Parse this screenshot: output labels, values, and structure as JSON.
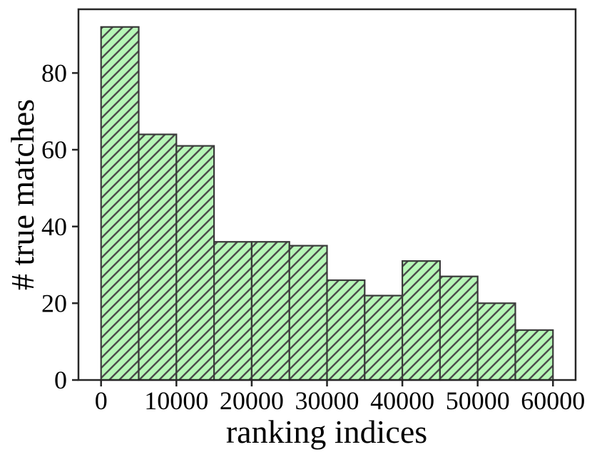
{
  "figure": {
    "title": ""
  },
  "chart_data": {
    "type": "bar",
    "subtype": "histogram",
    "title": "",
    "xlabel": "ranking indices",
    "ylabel": "# true matches",
    "bin_edges": [
      0,
      5000,
      10000,
      15000,
      20000,
      25000,
      30000,
      35000,
      40000,
      45000,
      50000,
      55000,
      60000
    ],
    "values": [
      92,
      64,
      61,
      36,
      36,
      35,
      26,
      22,
      31,
      27,
      20,
      13
    ],
    "x_ticks": [
      0,
      10000,
      20000,
      30000,
      40000,
      50000,
      60000
    ],
    "y_ticks": [
      0,
      20,
      40,
      60,
      80
    ],
    "xlim": [
      -3000,
      63000
    ],
    "ylim": [
      0,
      96.6
    ],
    "grid": false,
    "legend_position": "none",
    "hatch": "/",
    "colors": {
      "bar_fill": "#b7f7b7",
      "bar_edge": "#3a3a3a",
      "hatch_line": "#4c4c4c",
      "axis": "#262626",
      "text": "#000000",
      "background": "#ffffff"
    }
  }
}
